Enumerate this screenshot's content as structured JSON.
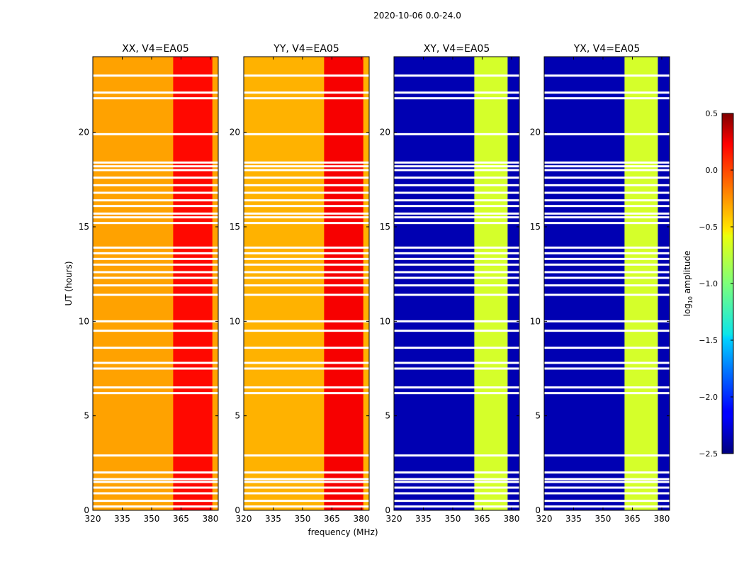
{
  "suptitle": "2020-10-06 0.0-24.0",
  "chart_data": {
    "type": "heatmap",
    "colormap": "jet",
    "xlabel": "frequency (MHz)",
    "ylabel": "UT (hours)",
    "xlim": [
      320,
      384
    ],
    "ylim": [
      0,
      24
    ],
    "xticks": [
      "320",
      "335",
      "350",
      "365",
      "380"
    ],
    "xtick_values": [
      320,
      335,
      350,
      365,
      380
    ],
    "yticks": [
      "0",
      "5",
      "10",
      "15",
      "20"
    ],
    "ytick_values": [
      0,
      5,
      10,
      15,
      20
    ],
    "colorbar": {
      "label": "log10 amplitude",
      "label_base": "log",
      "label_sub": "10",
      "label_rest": " amplitude",
      "range": [
        -2.5,
        0.5
      ],
      "ticks": [
        "0.5",
        "0.0",
        "−0.5",
        "−1.0",
        "−1.5",
        "−2.0",
        "−2.5"
      ],
      "tick_values": [
        0.5,
        0.0,
        -0.5,
        -1.0,
        -1.5,
        -2.0,
        -2.5
      ]
    },
    "panels": [
      {
        "title": "XX, V4=EA05",
        "pol": "XX",
        "background_value": -0.35,
        "high_band_value": 0.1,
        "high_band_mhz": [
          361,
          381
        ]
      },
      {
        "title": "YY, V4=EA05",
        "pol": "YY",
        "background_value": -0.4,
        "high_band_value": 0.15,
        "high_band_mhz": [
          361,
          381
        ]
      },
      {
        "title": "XY, V4=EA05",
        "pol": "XY",
        "background_value": -2.35,
        "high_band_value": -0.75,
        "high_band_mhz": [
          361,
          378
        ]
      },
      {
        "title": "YX, V4=EA05",
        "pol": "YX",
        "background_value": -2.35,
        "high_band_value": -0.75,
        "high_band_mhz": [
          361,
          378
        ]
      }
    ],
    "flagged_ut_hours": [
      0.2,
      0.5,
      0.9,
      1.2,
      1.5,
      1.65,
      2.0,
      2.9,
      6.2,
      6.5,
      7.5,
      7.8,
      8.6,
      9.5,
      10.0,
      11.4,
      11.9,
      12.3,
      12.6,
      13.0,
      13.3,
      13.6,
      13.9,
      15.2,
      15.5,
      15.7,
      16.1,
      16.4,
      16.8,
      17.2,
      17.6,
      18.0,
      18.2,
      18.4,
      19.9,
      21.8,
      22.1,
      23.0
    ]
  }
}
